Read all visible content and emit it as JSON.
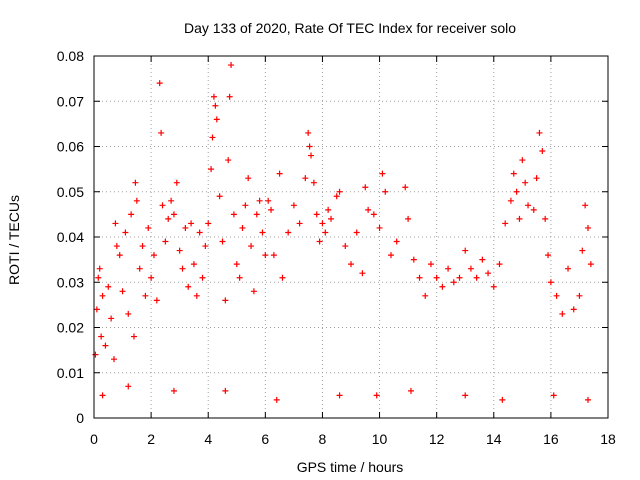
{
  "chart_data": {
    "type": "scatter",
    "title": "Day 133 of 2020, Rate Of TEC Index for receiver solo",
    "xlabel": "GPS time / hours",
    "ylabel": "ROTI / TECUs",
    "xlim": [
      0,
      18
    ],
    "ylim": [
      0,
      0.08
    ],
    "xticks": [
      "0",
      "2",
      "4",
      "6",
      "8",
      "10",
      "12",
      "14",
      "16",
      "18"
    ],
    "yticks": [
      "0",
      "0.01",
      "0.02",
      "0.03",
      "0.04",
      "0.05",
      "0.06",
      "0.07",
      "0.08"
    ],
    "grid": true,
    "marker": "+",
    "color": "#ff0000",
    "series": [
      {
        "points": [
          [
            0.05,
            0.014
          ],
          [
            0.1,
            0.024
          ],
          [
            0.15,
            0.031
          ],
          [
            0.2,
            0.033
          ],
          [
            0.25,
            0.018
          ],
          [
            0.3,
            0.027
          ],
          [
            0.4,
            0.016
          ],
          [
            0.5,
            0.029
          ],
          [
            0.6,
            0.022
          ],
          [
            0.7,
            0.013
          ],
          [
            0.75,
            0.043
          ],
          [
            0.8,
            0.038
          ],
          [
            0.9,
            0.036
          ],
          [
            1.0,
            0.028
          ],
          [
            1.1,
            0.041
          ],
          [
            1.2,
            0.023
          ],
          [
            1.3,
            0.045
          ],
          [
            1.4,
            0.018
          ],
          [
            1.45,
            0.052
          ],
          [
            1.5,
            0.048
          ],
          [
            1.6,
            0.033
          ],
          [
            1.7,
            0.038
          ],
          [
            1.8,
            0.027
          ],
          [
            1.9,
            0.042
          ],
          [
            2.0,
            0.031
          ],
          [
            2.1,
            0.036
          ],
          [
            2.2,
            0.026
          ],
          [
            2.3,
            0.074
          ],
          [
            2.35,
            0.063
          ],
          [
            2.4,
            0.047
          ],
          [
            2.5,
            0.039
          ],
          [
            2.6,
            0.044
          ],
          [
            2.7,
            0.048
          ],
          [
            2.8,
            0.045
          ],
          [
            2.9,
            0.052
          ],
          [
            3.0,
            0.037
          ],
          [
            3.1,
            0.033
          ],
          [
            3.2,
            0.042
          ],
          [
            3.3,
            0.029
          ],
          [
            3.4,
            0.043
          ],
          [
            3.5,
            0.034
          ],
          [
            3.6,
            0.027
          ],
          [
            3.7,
            0.041
          ],
          [
            3.8,
            0.031
          ],
          [
            3.9,
            0.038
          ],
          [
            4.0,
            0.043
          ],
          [
            4.1,
            0.055
          ],
          [
            4.15,
            0.062
          ],
          [
            4.2,
            0.071
          ],
          [
            4.25,
            0.069
          ],
          [
            4.3,
            0.066
          ],
          [
            4.4,
            0.049
          ],
          [
            4.5,
            0.039
          ],
          [
            4.6,
            0.026
          ],
          [
            4.7,
            0.057
          ],
          [
            4.75,
            0.071
          ],
          [
            4.8,
            0.078
          ],
          [
            4.9,
            0.045
          ],
          [
            5.0,
            0.034
          ],
          [
            5.1,
            0.031
          ],
          [
            5.2,
            0.042
          ],
          [
            5.3,
            0.047
          ],
          [
            5.4,
            0.053
          ],
          [
            5.5,
            0.038
          ],
          [
            5.6,
            0.028
          ],
          [
            5.7,
            0.045
          ],
          [
            5.8,
            0.048
          ],
          [
            5.9,
            0.041
          ],
          [
            6.0,
            0.036
          ],
          [
            6.1,
            0.048
          ],
          [
            6.2,
            0.046
          ],
          [
            6.3,
            0.036
          ],
          [
            6.5,
            0.054
          ],
          [
            6.6,
            0.031
          ],
          [
            6.8,
            0.041
          ],
          [
            7.0,
            0.047
          ],
          [
            7.2,
            0.043
          ],
          [
            7.4,
            0.053
          ],
          [
            7.5,
            0.063
          ],
          [
            7.55,
            0.06
          ],
          [
            7.6,
            0.058
          ],
          [
            7.7,
            0.052
          ],
          [
            7.8,
            0.045
          ],
          [
            7.9,
            0.039
          ],
          [
            8.0,
            0.043
          ],
          [
            8.1,
            0.041
          ],
          [
            8.2,
            0.046
          ],
          [
            8.3,
            0.044
          ],
          [
            8.5,
            0.049
          ],
          [
            8.6,
            0.05
          ],
          [
            8.8,
            0.038
          ],
          [
            9.0,
            0.034
          ],
          [
            9.2,
            0.041
          ],
          [
            9.4,
            0.032
          ],
          [
            9.5,
            0.051
          ],
          [
            9.6,
            0.046
          ],
          [
            9.8,
            0.045
          ],
          [
            10.0,
            0.042
          ],
          [
            10.1,
            0.054
          ],
          [
            10.2,
            0.05
          ],
          [
            10.4,
            0.036
          ],
          [
            10.6,
            0.039
          ],
          [
            10.9,
            0.051
          ],
          [
            11.0,
            0.044
          ],
          [
            11.2,
            0.035
          ],
          [
            11.4,
            0.031
          ],
          [
            11.6,
            0.027
          ],
          [
            11.8,
            0.034
          ],
          [
            12.0,
            0.031
          ],
          [
            12.2,
            0.029
          ],
          [
            12.4,
            0.033
          ],
          [
            12.6,
            0.03
          ],
          [
            12.8,
            0.031
          ],
          [
            13.0,
            0.037
          ],
          [
            13.2,
            0.033
          ],
          [
            13.4,
            0.031
          ],
          [
            13.6,
            0.035
          ],
          [
            13.8,
            0.032
          ],
          [
            14.0,
            0.029
          ],
          [
            14.2,
            0.034
          ],
          [
            14.4,
            0.043
          ],
          [
            14.6,
            0.048
          ],
          [
            14.7,
            0.054
          ],
          [
            14.8,
            0.05
          ],
          [
            14.9,
            0.044
          ],
          [
            15.0,
            0.057
          ],
          [
            15.1,
            0.052
          ],
          [
            15.2,
            0.047
          ],
          [
            15.4,
            0.046
          ],
          [
            15.5,
            0.053
          ],
          [
            15.6,
            0.063
          ],
          [
            15.7,
            0.059
          ],
          [
            15.8,
            0.044
          ],
          [
            15.9,
            0.036
          ],
          [
            16.0,
            0.03
          ],
          [
            16.2,
            0.027
          ],
          [
            16.4,
            0.023
          ],
          [
            16.6,
            0.033
          ],
          [
            16.8,
            0.024
          ],
          [
            17.0,
            0.027
          ],
          [
            17.1,
            0.037
          ],
          [
            17.2,
            0.047
          ],
          [
            17.3,
            0.042
          ],
          [
            17.4,
            0.034
          ],
          [
            0.3,
            0.005
          ],
          [
            1.2,
            0.007
          ],
          [
            2.8,
            0.006
          ],
          [
            4.6,
            0.006
          ],
          [
            6.4,
            0.004
          ],
          [
            8.6,
            0.005
          ],
          [
            9.9,
            0.005
          ],
          [
            11.1,
            0.006
          ],
          [
            13.0,
            0.005
          ],
          [
            14.3,
            0.004
          ],
          [
            16.1,
            0.005
          ],
          [
            17.3,
            0.004
          ]
        ]
      }
    ]
  }
}
